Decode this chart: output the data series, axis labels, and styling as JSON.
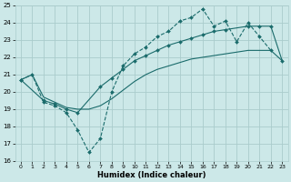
{
  "title": "",
  "xlabel": "Humidex (Indice chaleur)",
  "bg_color": "#cce8e8",
  "grid_color": "#aacccc",
  "line_color": "#1a6b6b",
  "xlim": [
    -0.5,
    23.5
  ],
  "ylim": [
    16,
    25
  ],
  "xticks": [
    0,
    1,
    2,
    3,
    4,
    5,
    6,
    7,
    8,
    9,
    10,
    11,
    12,
    13,
    14,
    15,
    16,
    17,
    18,
    19,
    20,
    21,
    22,
    23
  ],
  "yticks": [
    16,
    17,
    18,
    19,
    20,
    21,
    22,
    23,
    24,
    25
  ],
  "series1_x": [
    0,
    1,
    2,
    3,
    4,
    5,
    6,
    7,
    8,
    9,
    10,
    11,
    12,
    13,
    14,
    15,
    16,
    17,
    18,
    19,
    20,
    21,
    22
  ],
  "series1_y": [
    20.7,
    21.0,
    19.4,
    19.2,
    18.8,
    17.8,
    16.5,
    17.3,
    20.0,
    21.5,
    22.2,
    22.6,
    23.2,
    23.5,
    24.1,
    24.3,
    24.8,
    23.8,
    24.1,
    22.9,
    24.0,
    23.2,
    22.4
  ],
  "series2_x": [
    0,
    2,
    3,
    4,
    5,
    7,
    8,
    9,
    10,
    11,
    12,
    13,
    14,
    15,
    16,
    17,
    18,
    20,
    21,
    22,
    23
  ],
  "series2_y": [
    20.7,
    19.5,
    19.3,
    19.0,
    18.8,
    20.3,
    20.8,
    21.3,
    21.8,
    22.1,
    22.4,
    22.7,
    22.9,
    23.1,
    23.3,
    23.5,
    23.6,
    23.8,
    23.8,
    23.8,
    21.8
  ],
  "series3_x": [
    0,
    1,
    2,
    3,
    4,
    5,
    6,
    7,
    8,
    9,
    10,
    11,
    12,
    13,
    14,
    15,
    16,
    17,
    18,
    19,
    20,
    21,
    22,
    23
  ],
  "series3_y": [
    20.7,
    21.0,
    19.7,
    19.4,
    19.1,
    19.0,
    19.0,
    19.2,
    19.6,
    20.1,
    20.6,
    21.0,
    21.3,
    21.5,
    21.7,
    21.9,
    22.0,
    22.1,
    22.2,
    22.3,
    22.4,
    22.4,
    22.4,
    21.8
  ]
}
